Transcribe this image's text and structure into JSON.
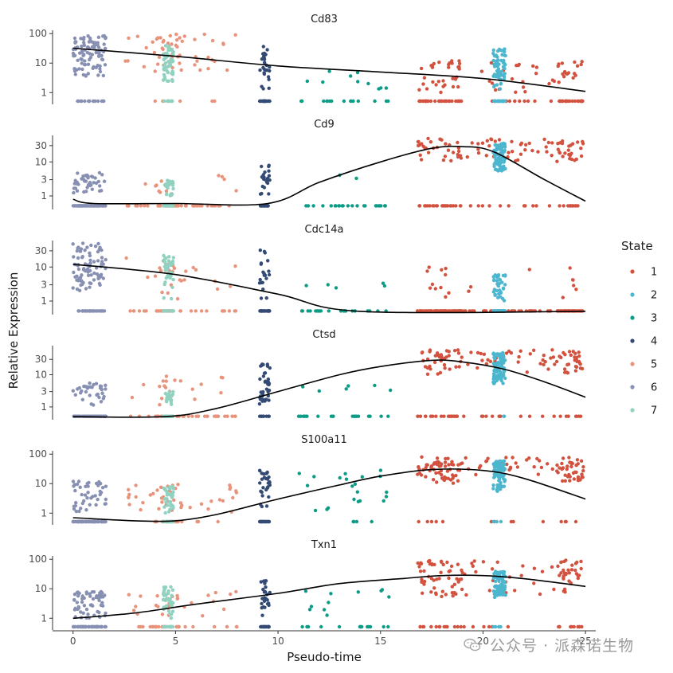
{
  "chart_data": {
    "type": "scatter",
    "layout": "faceted-6-rows",
    "xlabel": "Pseudo-time",
    "ylabel": "Relative Expression",
    "xlim": [
      -1,
      25.5
    ],
    "x_ticks": [
      0,
      5,
      10,
      15,
      20,
      25
    ],
    "y_scale": "log",
    "legend": {
      "title": "State",
      "placement": "right",
      "entries": [
        {
          "label": "1",
          "color": "#d2523f"
        },
        {
          "label": "2",
          "color": "#4db6cf"
        },
        {
          "label": "3",
          "color": "#0b9c86"
        },
        {
          "label": "4",
          "color": "#334a75"
        },
        {
          "label": "5",
          "color": "#e8937b"
        },
        {
          "label": "6",
          "color": "#8790b2"
        },
        {
          "label": "7",
          "color": "#91d1c0"
        }
      ]
    },
    "state_time_ranges": {
      "6": [
        0,
        1.6
      ],
      "5": [
        2.5,
        8
      ],
      "7": [
        4.4,
        4.9
      ],
      "4": [
        9.1,
        9.6
      ],
      "3": [
        11,
        15.5
      ],
      "1": [
        16.5,
        25
      ],
      "2": [
        20.5,
        21.1
      ]
    },
    "panels": [
      {
        "title": "Cd83",
        "ylim": [
          0.4,
          130
        ],
        "y_ticks": [
          {
            "v": 1,
            "label": "1"
          },
          {
            "v": 10,
            "label": "10"
          },
          {
            "v": 100,
            "label": "100"
          }
        ],
        "trend": [
          [
            0,
            32
          ],
          [
            5,
            17
          ],
          [
            10,
            8
          ],
          [
            15,
            5
          ],
          [
            20,
            3
          ],
          [
            25,
            1.1
          ]
        ],
        "cluster_ranges": {
          "6": [
            3,
            90
          ],
          "5": [
            5,
            100
          ],
          "7": [
            2,
            40
          ],
          "4": [
            1,
            40
          ],
          "3": [
            1,
            6
          ],
          "1": [
            1,
            12
          ],
          "2": [
            1,
            30
          ]
        },
        "zero_fraction": {
          "6": 0.12,
          "5": 0.05,
          "7": 0.2,
          "4": 0.3,
          "3": 0.7,
          "1": 0.45,
          "2": 0.35
        }
      },
      {
        "title": "Cd9",
        "ylim": [
          0.4,
          60
        ],
        "y_ticks": [
          {
            "v": 1,
            "label": "1"
          },
          {
            "v": 3,
            "label": "3"
          },
          {
            "v": 10,
            "label": "10"
          },
          {
            "v": 30,
            "label": "30"
          }
        ],
        "trend": [
          [
            0,
            0.8
          ],
          [
            1,
            0.6
          ],
          [
            5,
            0.6
          ],
          [
            9.5,
            0.6
          ],
          [
            12,
            2.5
          ],
          [
            15,
            10
          ],
          [
            17.5,
            25
          ],
          [
            19,
            28
          ],
          [
            20.5,
            20
          ],
          [
            23,
            3
          ],
          [
            25,
            0.7
          ]
        ],
        "cluster_ranges": {
          "6": [
            1,
            5
          ],
          "5": [
            1,
            4
          ],
          "7": [
            1,
            3
          ],
          "4": [
            1,
            8
          ],
          "3": [
            3,
            8
          ],
          "1": [
            10,
            50
          ],
          "2": [
            5,
            35
          ]
        },
        "zero_fraction": {
          "6": 0.7,
          "5": 0.85,
          "7": 0.6,
          "4": 0.5,
          "3": 0.85,
          "1": 0.3,
          "2": 0.02
        }
      },
      {
        "title": "Cdc14a",
        "ylim": [
          0.4,
          60
        ],
        "y_ticks": [
          {
            "v": 1,
            "label": "1"
          },
          {
            "v": 3,
            "label": "3"
          },
          {
            "v": 10,
            "label": "10"
          },
          {
            "v": 30,
            "label": "30"
          }
        ],
        "trend": [
          [
            0,
            12
          ],
          [
            5,
            6
          ],
          [
            10,
            1.6
          ],
          [
            14,
            0.5
          ],
          [
            25,
            0.5
          ]
        ],
        "cluster_ranges": {
          "6": [
            2,
            50
          ],
          "5": [
            1,
            25
          ],
          "7": [
            1,
            25
          ],
          "4": [
            1,
            35
          ],
          "3": [
            2,
            4
          ],
          "1": [
            1,
            10
          ],
          "2": [
            1,
            6
          ]
        },
        "zero_fraction": {
          "6": 0.25,
          "5": 0.5,
          "7": 0.25,
          "4": 0.45,
          "3": 0.7,
          "1": 0.8,
          "2": 0.6
        }
      },
      {
        "title": "Ctsd",
        "ylim": [
          0.4,
          80
        ],
        "y_ticks": [
          {
            "v": 1,
            "label": "1"
          },
          {
            "v": 3,
            "label": "3"
          },
          {
            "v": 10,
            "label": "10"
          },
          {
            "v": 30,
            "label": "30"
          }
        ],
        "trend": [
          [
            0,
            0.5
          ],
          [
            4.5,
            0.5
          ],
          [
            7,
            0.9
          ],
          [
            10,
            3
          ],
          [
            13,
            10
          ],
          [
            15,
            18
          ],
          [
            17.5,
            28
          ],
          [
            19,
            25
          ],
          [
            21,
            15
          ],
          [
            23,
            6
          ],
          [
            25,
            2
          ]
        ],
        "cluster_ranges": {
          "6": [
            1,
            6
          ],
          "5": [
            1,
            10
          ],
          "7": [
            1,
            3
          ],
          "4": [
            1,
            25
          ],
          "3": [
            3,
            5
          ],
          "1": [
            10,
            60
          ],
          "2": [
            5,
            50
          ]
        },
        "zero_fraction": {
          "6": 0.75,
          "5": 0.7,
          "7": 0.6,
          "4": 0.3,
          "3": 0.85,
          "1": 0.25,
          "2": 0.02
        }
      },
      {
        "title": "S100a11",
        "ylim": [
          0.4,
          130
        ],
        "y_ticks": [
          {
            "v": 1,
            "label": "1"
          },
          {
            "v": 10,
            "label": "10"
          },
          {
            "v": 100,
            "label": "100"
          }
        ],
        "trend": [
          [
            0,
            0.7
          ],
          [
            3,
            0.55
          ],
          [
            5,
            0.55
          ],
          [
            7,
            0.9
          ],
          [
            10,
            3
          ],
          [
            13,
            9
          ],
          [
            15,
            18
          ],
          [
            17.5,
            30
          ],
          [
            20,
            28
          ],
          [
            22,
            15
          ],
          [
            25,
            3
          ]
        ],
        "cluster_ranges": {
          "6": [
            1,
            12
          ],
          "5": [
            1,
            10
          ],
          "7": [
            1,
            8
          ],
          "4": [
            1,
            30
          ],
          "3": [
            1,
            30
          ],
          "1": [
            10,
            80
          ],
          "2": [
            5,
            60
          ]
        },
        "zero_fraction": {
          "6": 0.6,
          "5": 0.35,
          "7": 0.4,
          "4": 0.3,
          "3": 0.3,
          "1": 0.1,
          "2": 0.02
        }
      },
      {
        "title": "Txn1",
        "ylim": [
          0.4,
          130
        ],
        "y_ticks": [
          {
            "v": 1,
            "label": "1"
          },
          {
            "v": 10,
            "label": "10"
          },
          {
            "v": 100,
            "label": "100"
          }
        ],
        "trend": [
          [
            0,
            1
          ],
          [
            3,
            1.5
          ],
          [
            6,
            3
          ],
          [
            10,
            7
          ],
          [
            13,
            15
          ],
          [
            16,
            22
          ],
          [
            18,
            28
          ],
          [
            20,
            28
          ],
          [
            22,
            22
          ],
          [
            25,
            12
          ]
        ],
        "cluster_ranges": {
          "6": [
            1,
            8
          ],
          "5": [
            1,
            8
          ],
          "7": [
            1,
            12
          ],
          "4": [
            1,
            20
          ],
          "3": [
            1,
            10
          ],
          "1": [
            5,
            100
          ],
          "2": [
            5,
            40
          ]
        },
        "zero_fraction": {
          "6": 0.4,
          "5": 0.4,
          "7": 0.3,
          "4": 0.4,
          "3": 0.6,
          "1": 0.15,
          "2": 0.05
        }
      }
    ]
  },
  "watermark": {
    "text": "公众号 · 派森诺生物",
    "icon": "wechat-icon"
  }
}
